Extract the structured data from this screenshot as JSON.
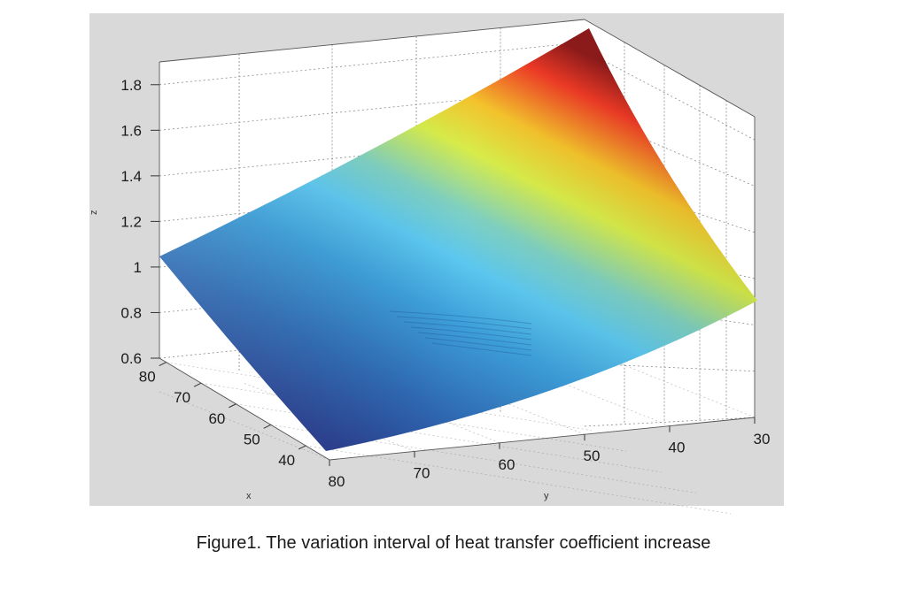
{
  "caption": "Figure1. The variation interval of heat transfer coefficient increase",
  "colors": {
    "panel_background": "#d9d9d9",
    "pane": "#ffffff",
    "grid": "#7f7f7f",
    "colormap": [
      "#2a3f8f",
      "#2f6bb3",
      "#3d9fd9",
      "#5cc7ef",
      "#7fd0c0",
      "#d7ec4a",
      "#f3c32c",
      "#ee3a26",
      "#8e1b1b"
    ]
  },
  "chart_data": {
    "type": "surface",
    "title": "",
    "xlabel": "x",
    "ylabel": "y",
    "zlabel": "z",
    "x_ticks": [
      "80",
      "70",
      "60",
      "50",
      "40"
    ],
    "y_ticks": [
      "80",
      "70",
      "60",
      "50",
      "40",
      "30"
    ],
    "z_ticks": [
      "0.6",
      "0.8",
      "1",
      "1.2",
      "1.4",
      "1.6",
      "1.8"
    ],
    "xlim": [
      40,
      80
    ],
    "ylim": [
      30,
      80
    ],
    "zlim": [
      0.6,
      1.9
    ],
    "grid": true,
    "colormap": "jet",
    "corners": [
      {
        "x": 80,
        "y": 80,
        "z": 1.08
      },
      {
        "x": 40,
        "y": 80,
        "z": 0.48
      },
      {
        "x": 40,
        "y": 30,
        "z": 0.92
      },
      {
        "x": 80,
        "y": 30,
        "z": 1.95
      }
    ]
  }
}
